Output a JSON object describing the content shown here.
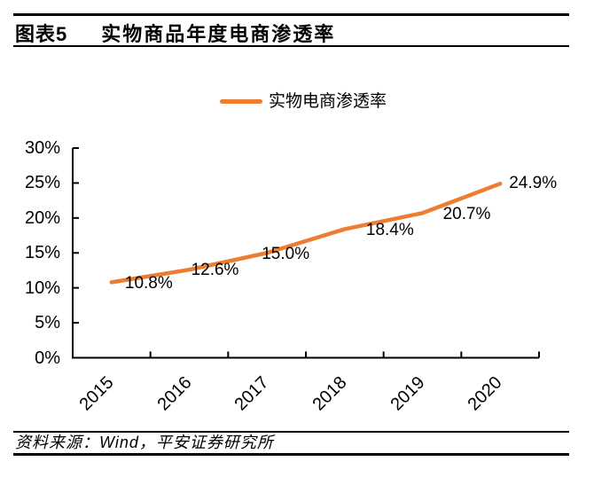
{
  "header": {
    "figure_label": "图表5",
    "title": "实物商品年度电商渗透率"
  },
  "legend": {
    "series_label": "实物电商渗透率"
  },
  "footer": {
    "source": "资料来源：Wind，平安证券研究所"
  },
  "colors": {
    "line": "#ED7D31",
    "axis": "#000000",
    "text": "#000000"
  },
  "chart_data": {
    "type": "line",
    "title": "实物商品年度电商渗透率",
    "categories": [
      "2015",
      "2016",
      "2017",
      "2018",
      "2019",
      "2020"
    ],
    "series": [
      {
        "name": "实物电商渗透率",
        "values": [
          10.8,
          12.6,
          15.0,
          18.4,
          20.7,
          24.9
        ]
      }
    ],
    "data_labels": [
      "10.8%",
      "12.6%",
      "15.0%",
      "18.4%",
      "20.7%",
      "24.9%"
    ],
    "xlabel": "",
    "ylabel": "",
    "ylim": [
      0,
      30
    ],
    "y_tick_step": 5,
    "y_tick_suffix": "%",
    "grid": false,
    "legend_position": "top"
  }
}
